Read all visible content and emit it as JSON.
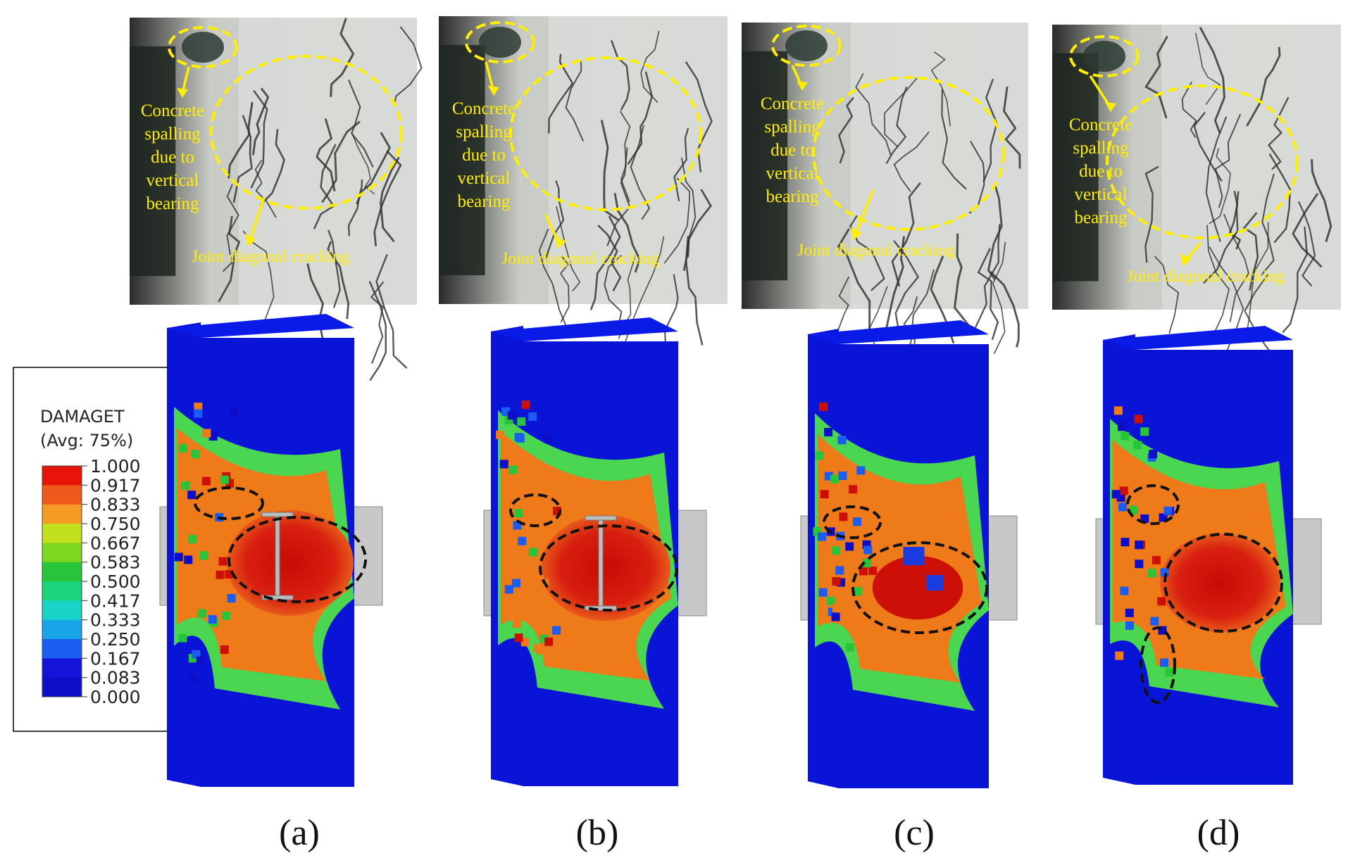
{
  "legend": {
    "title": "DAMAGET",
    "subtitle": "(Avg: 75%)",
    "values": [
      "1.000",
      "0.917",
      "0.833",
      "0.750",
      "0.667",
      "0.583",
      "0.500",
      "0.417",
      "0.333",
      "0.250",
      "0.167",
      "0.083",
      "0.000"
    ],
    "colors": [
      "#e8140a",
      "#f0591c",
      "#f59a22",
      "#c3e01c",
      "#7fd81f",
      "#28c43a",
      "#1ad57c",
      "#18d3c6",
      "#1aa5e8",
      "#1a5df0",
      "#1414d8",
      "#0e0ec8"
    ]
  },
  "annotations": {
    "spalling_lines": [
      "Concrete",
      "spalling",
      "due to",
      "vertical",
      "bearing"
    ],
    "cracking": "Joint diagonal cracking"
  },
  "panels": [
    {
      "label": "(a)"
    },
    {
      "label": "(b)"
    },
    {
      "label": "(c)"
    },
    {
      "label": "(d)"
    }
  ],
  "colors": {
    "annotation": "#ffee00",
    "model_blue": "#0a14d6",
    "model_red": "#cc1008",
    "model_orange": "#ee7a1a",
    "model_green": "#4ee04a",
    "photo_gray": "#cfd1cf",
    "steel": "#c8c8c8"
  }
}
